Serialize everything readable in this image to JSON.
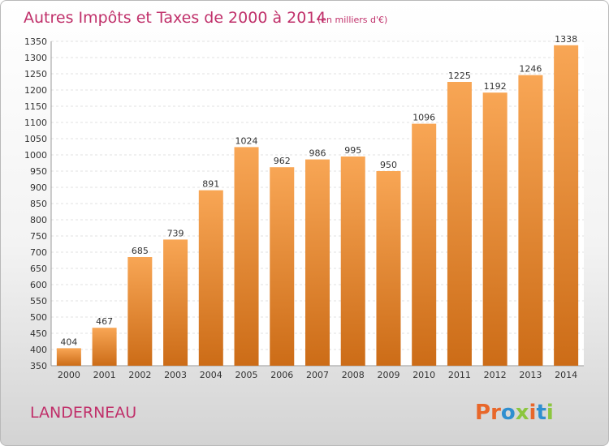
{
  "chart_data": {
    "type": "bar",
    "title": "Autres Impôts et Taxes de 2000 à 2014",
    "subtitle": "(en milliers d'€)",
    "categories": [
      "2000",
      "2001",
      "2002",
      "2003",
      "2004",
      "2005",
      "2006",
      "2007",
      "2008",
      "2009",
      "2010",
      "2011",
      "2012",
      "2013",
      "2014"
    ],
    "values": [
      404,
      467,
      685,
      739,
      891,
      1024,
      962,
      986,
      995,
      950,
      1096,
      1225,
      1192,
      1246,
      1338
    ],
    "ylim": [
      350,
      1350
    ],
    "ytick_step": 50,
    "xlabel": "",
    "ylabel": "",
    "grid": true,
    "bar_color_top": "#f8a655",
    "bar_color_bottom": "#cc6c17"
  },
  "footer": {
    "city": "LANDERNEAU",
    "brand": "Proxiti"
  },
  "colors": {
    "title": "#c0306a",
    "logo_letters": [
      "#e8672a",
      "#e8672a",
      "#2f8fd0",
      "#8cc63f",
      "#e8672a",
      "#2f8fd0",
      "#8cc63f"
    ]
  }
}
